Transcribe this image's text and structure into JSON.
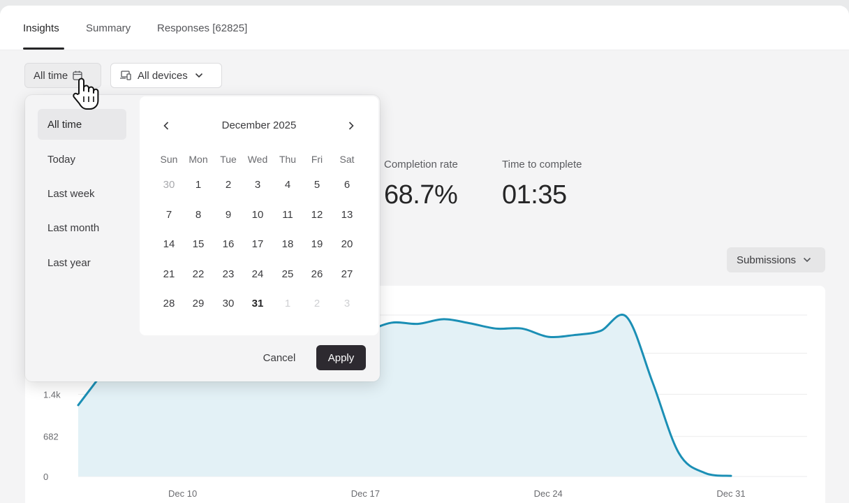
{
  "tabs": [
    {
      "label": "Insights",
      "active": true
    },
    {
      "label": "Summary",
      "active": false
    },
    {
      "label": "Responses [62825]",
      "active": false
    }
  ],
  "filters": {
    "date_label": "All time",
    "device_label": "All devices"
  },
  "metrics": [
    {
      "label": "Completion rate",
      "value": "68.7%"
    },
    {
      "label": "Time to complete",
      "value": "01:35"
    }
  ],
  "chart_control": {
    "label": "Submissions"
  },
  "date_picker": {
    "presets": [
      "All time",
      "Today",
      "Last week",
      "Last month",
      "Last year"
    ],
    "selected_preset": "All time",
    "month_title": "December 2025",
    "weekdays": [
      "Sun",
      "Mon",
      "Tue",
      "Wed",
      "Thu",
      "Fri",
      "Sat"
    ],
    "weeks": [
      [
        "30",
        "1",
        "2",
        "3",
        "4",
        "5",
        "6"
      ],
      [
        "7",
        "8",
        "9",
        "10",
        "11",
        "12",
        "13"
      ],
      [
        "14",
        "15",
        "16",
        "17",
        "18",
        "19",
        "20"
      ],
      [
        "21",
        "22",
        "23",
        "24",
        "25",
        "26",
        "27"
      ],
      [
        "28",
        "29",
        "30",
        "31",
        "1",
        "2",
        "3"
      ]
    ],
    "highlighted_day": "31",
    "cancel_label": "Cancel",
    "apply_label": "Apply"
  },
  "colors": {
    "line": "#1b8fb5",
    "fill": "#e3f1f6",
    "primary_button": "#2d2a30"
  },
  "chart_data": {
    "type": "area",
    "series": [
      {
        "values": [
          1215,
          1800,
          2380,
          2380,
          2380,
          2380,
          2380,
          2380,
          2380,
          2100,
          2200,
          2450,
          2620,
          2600,
          2680,
          2610,
          2520,
          2520,
          2380,
          2410,
          2480,
          2720,
          1600,
          400,
          60,
          10
        ]
      }
    ],
    "x": [
      "Dec 6",
      "Dec 7",
      "Dec 8",
      "Dec 9",
      "Dec 10",
      "Dec 11",
      "Dec 12",
      "Dec 13",
      "Dec 14",
      "Dec 15",
      "Dec 16",
      "Dec 17",
      "Dec 18",
      "Dec 19",
      "Dec 20",
      "Dec 21",
      "Dec 22",
      "Dec 23",
      "Dec 24",
      "Dec 25",
      "Dec 26",
      "Dec 27",
      "Dec 28",
      "Dec 29",
      "Dec 30",
      "Dec 31"
    ],
    "xticks": [
      "Dec 10",
      "Dec 17",
      "Dec 24",
      "Dec 31"
    ],
    "yticks": [
      "0",
      "682",
      "1.4k"
    ],
    "ylim": [
      0,
      2750
    ],
    "grid": true
  }
}
